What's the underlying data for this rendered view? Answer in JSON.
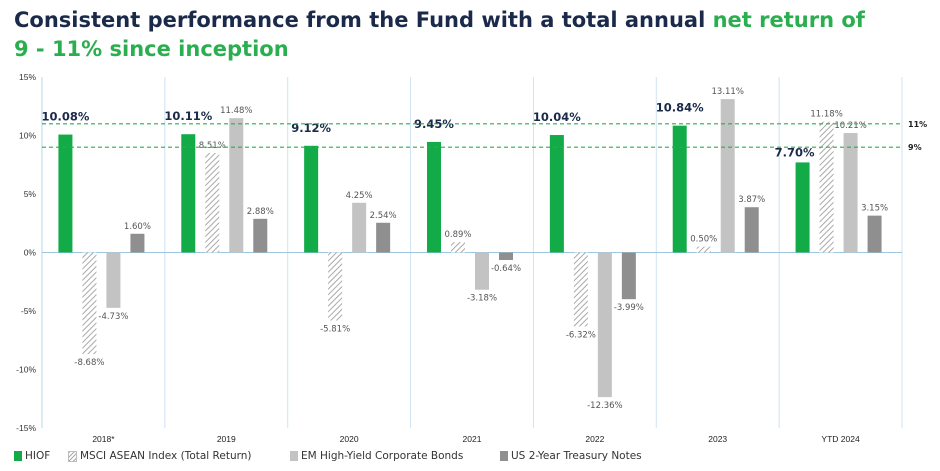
{
  "title": {
    "part1": "Consistent performance from the Fund with a total annual ",
    "part2": "net return of",
    "part3": "9 - 11% since inception"
  },
  "colors": {
    "title": "#1b2a4a",
    "accent": "#2aae4f",
    "hiof": "#12ab48",
    "msci": "#a9a9a9",
    "em": "#c3c3c3",
    "us": "#8f8f8f",
    "reference_line": "#2aae4f"
  },
  "chart_data": {
    "type": "bar",
    "categories": [
      "2018*",
      "2019",
      "2020",
      "2021",
      "2022",
      "2023",
      "YTD 2024"
    ],
    "series": [
      {
        "name": "HIOF",
        "values": [
          10.08,
          10.11,
          9.12,
          9.45,
          10.04,
          10.84,
          7.7
        ],
        "labels": [
          "10.08%",
          "10.11%",
          "9.12%",
          "9.45%",
          "10.04%",
          "10.84%",
          "7.70%"
        ],
        "pattern": "solid"
      },
      {
        "name": "MSCI ASEAN Index (Total Return)",
        "values": [
          -8.68,
          8.51,
          -5.81,
          0.89,
          -6.32,
          0.5,
          11.18
        ],
        "labels": [
          "-8.68%",
          "8.51%",
          "-5.81%",
          "0.89%",
          "-6.32%",
          "0.50%",
          "11.18%"
        ],
        "pattern": "hatched"
      },
      {
        "name": "EM High-Yield Corporate Bonds",
        "values": [
          -4.73,
          11.48,
          4.25,
          -3.18,
          -12.36,
          13.11,
          10.21
        ],
        "labels": [
          "-4.73%",
          "11.48%",
          "4.25%",
          "-3.18%",
          "-12.36%",
          "13.11%",
          "10.21%"
        ],
        "pattern": "solid"
      },
      {
        "name": "US 2-Year Treasury Notes",
        "values": [
          1.6,
          2.88,
          2.54,
          -0.64,
          -3.99,
          3.87,
          3.15
        ],
        "labels": [
          "1.60%",
          "2.88%",
          "2.54%",
          "-0.64%",
          "-3.99%",
          "3.87%",
          "3.15%"
        ],
        "pattern": "solid"
      }
    ],
    "ylim": [
      -15,
      15
    ],
    "yticks": [
      15,
      10,
      5,
      0,
      -5,
      -10,
      -15
    ],
    "ytick_labels": [
      "15%",
      "10%",
      "5%",
      "0%",
      "-5%",
      "-10%",
      "-15%"
    ],
    "reference_lines": [
      {
        "value": 11,
        "label": "11%"
      },
      {
        "value": 9,
        "label": "9%"
      }
    ],
    "grid": "vertical category separators",
    "legend": "bottom"
  }
}
